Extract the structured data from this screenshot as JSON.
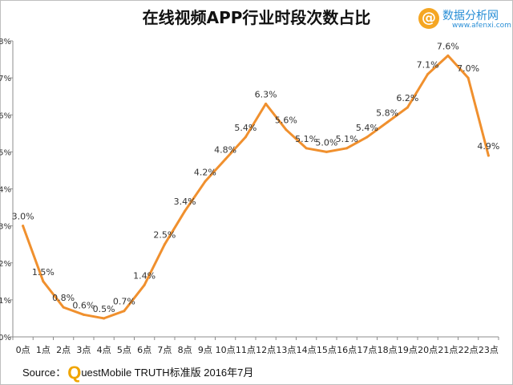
{
  "title": "在线视频APP行业时段次数占比",
  "logo": {
    "glyph": "@",
    "name": "数据分析网",
    "url": "www.afenxi.com"
  },
  "source": {
    "prefix": "Source：",
    "brand_initial": "Q",
    "rest": "uestMobile TRUTH标准版 2016年7月"
  },
  "chart_data": {
    "type": "line",
    "title": "在线视频APP行业时段次数占比",
    "xlabel": "",
    "ylabel": "",
    "ylim": [
      0,
      8
    ],
    "y_ticks": [
      "0%",
      "1%",
      "2%",
      "3%",
      "4%",
      "5%",
      "6%",
      "7%",
      "8%"
    ],
    "categories": [
      "0点",
      "1点",
      "2点",
      "3点",
      "4点",
      "5点",
      "6点",
      "7点",
      "8点",
      "9点",
      "10点",
      "11点",
      "12点",
      "13点",
      "14点",
      "15点",
      "16点",
      "17点",
      "18点",
      "19点",
      "20点",
      "21点",
      "22点",
      "23点"
    ],
    "series": [
      {
        "values": [
          3.0,
          1.5,
          0.8,
          0.6,
          0.5,
          0.7,
          1.4,
          2.5,
          3.4,
          4.2,
          4.8,
          5.4,
          6.3,
          5.6,
          5.1,
          5.0,
          5.1,
          5.4,
          5.8,
          6.2,
          7.1,
          7.6,
          7.0,
          4.9
        ]
      }
    ],
    "data_labels": [
      "3.0%",
      "1.5%",
      "0.8%",
      "0.6%",
      "0.5%",
      "0.7%",
      "1.4%",
      "2.5%",
      "3.4%",
      "4.2%",
      "4.8%",
      "5.4%",
      "6.3%",
      "5.6%",
      "5.1%",
      "5.0%",
      "5.1%",
      "5.4%",
      "5.8%",
      "6.2%",
      "7.1%",
      "7.6%",
      "7.0%",
      "4.9%"
    ],
    "line_color": "#f0902e",
    "grid": false,
    "legend": "none"
  }
}
